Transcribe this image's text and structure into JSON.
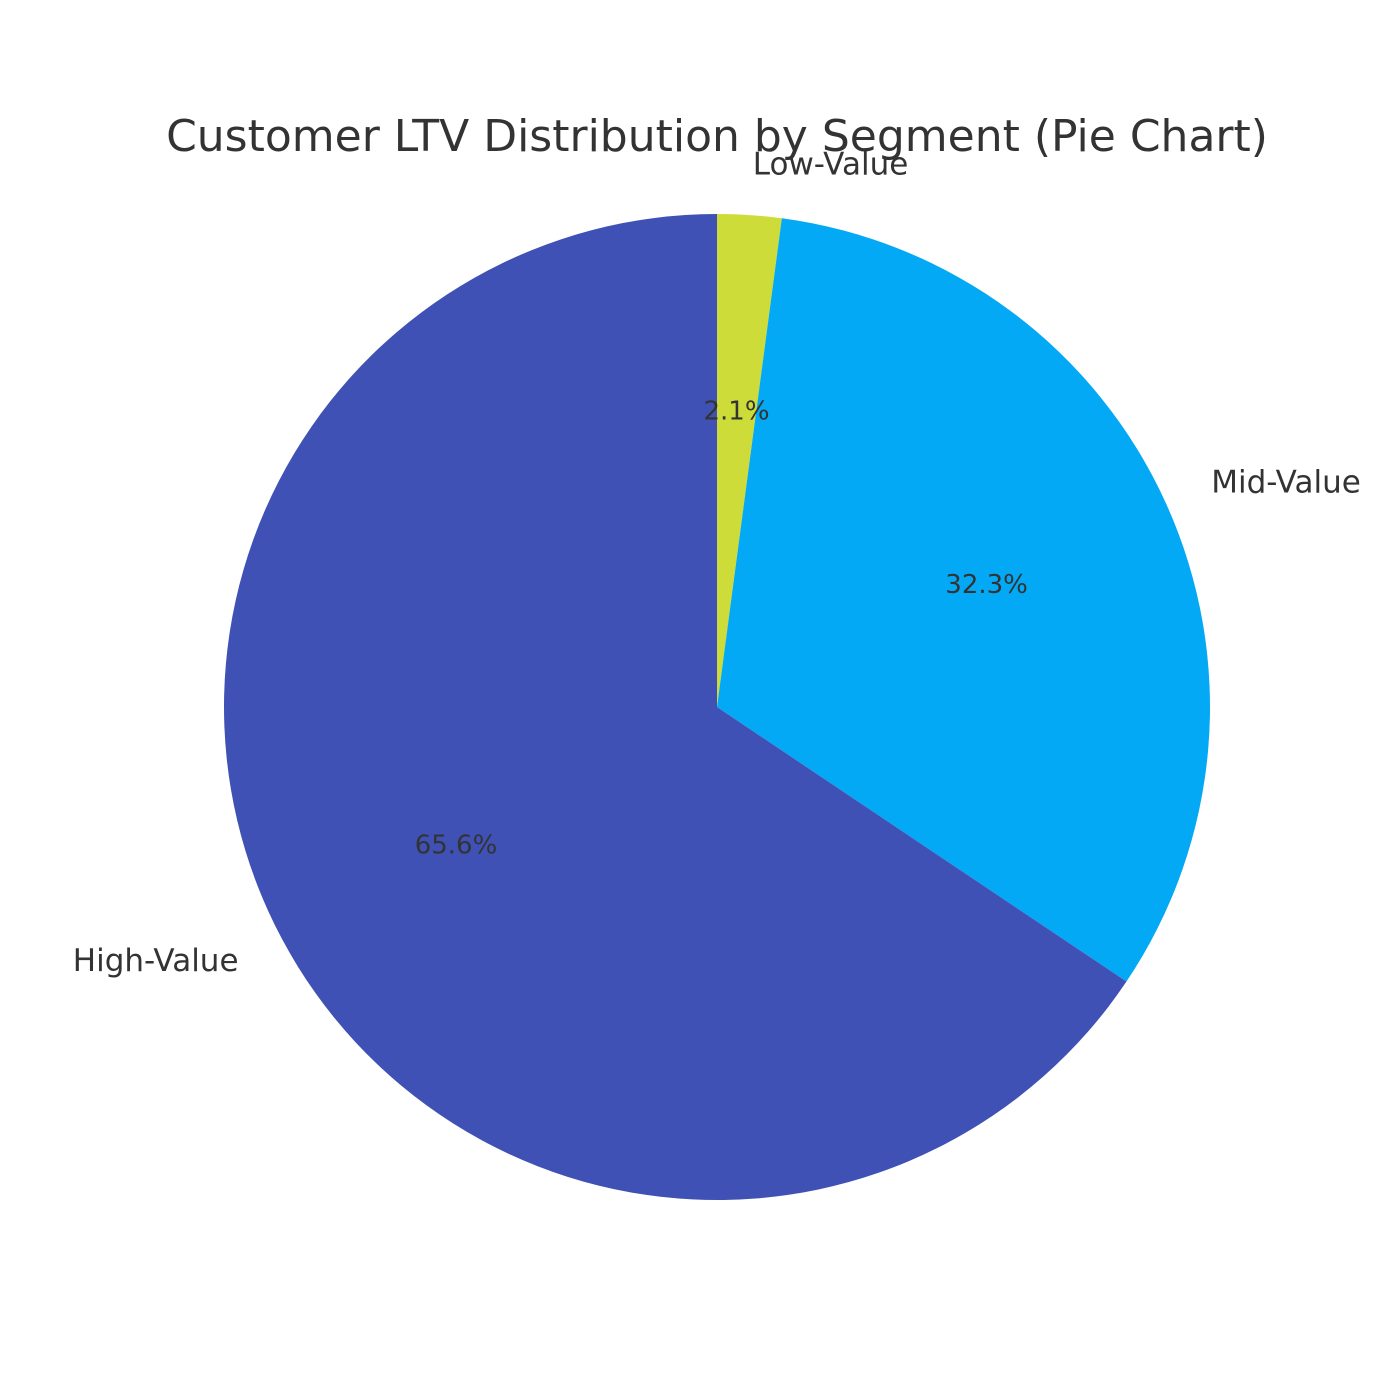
{
  "chart_data": {
    "type": "pie",
    "title": "Customer LTV Distribution by Segment (Pie Chart)",
    "start": "top, clockwise",
    "slices": [
      {
        "label": "Low-Value",
        "value": 2.1,
        "display": "2.1%",
        "color": "#cddc39"
      },
      {
        "label": "Mid-Value",
        "value": 32.3,
        "display": "32.3%",
        "color": "#03a9f4"
      },
      {
        "label": "High-Value",
        "value": 65.6,
        "display": "65.6%",
        "color": "#3f51b5"
      }
    ]
  }
}
